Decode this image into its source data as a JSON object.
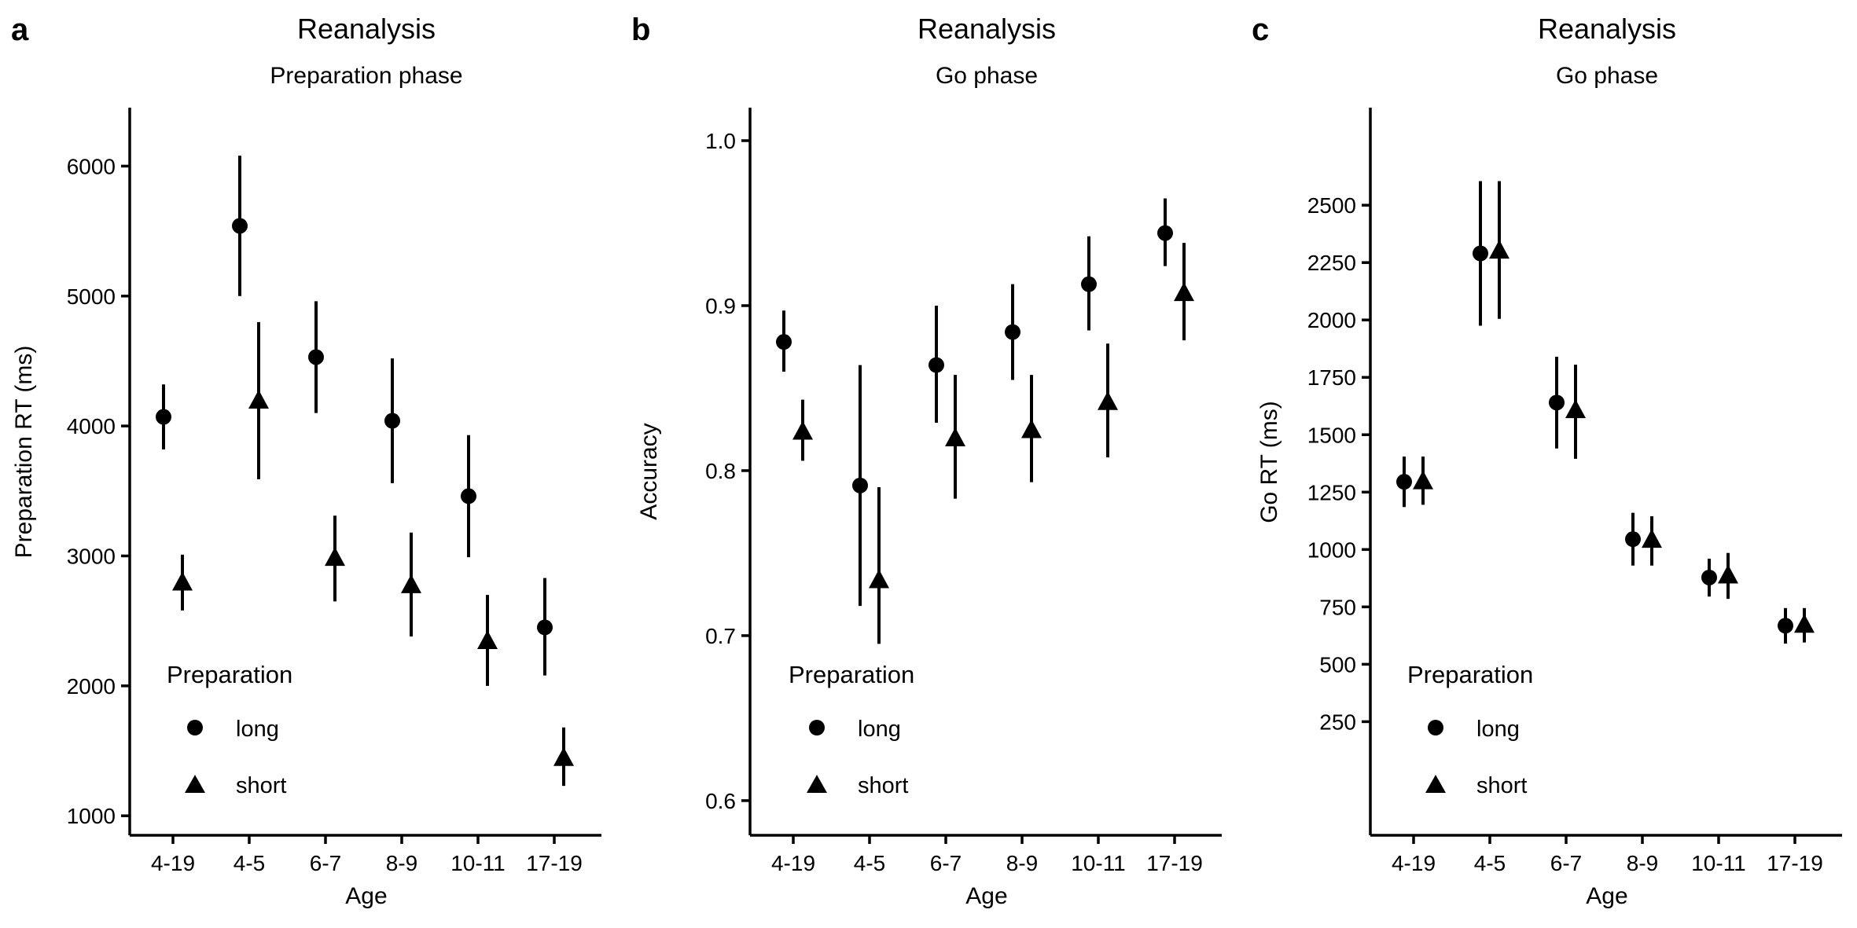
{
  "chart_data": [
    {
      "type": "scatter",
      "panel_letter": "a",
      "title": "Reanalysis",
      "subtitle": "Preparation phase",
      "xlabel": "Age",
      "ylabel": "Preparation RT (ms)",
      "categories": [
        "4-19",
        "4-5",
        "6-7",
        "8-9",
        "10-11",
        "17-19"
      ],
      "ylim": [
        850,
        6450
      ],
      "yticks": [
        1000,
        2000,
        3000,
        4000,
        5000,
        6000
      ],
      "legend": {
        "title": "Preparation",
        "placement": "bottom-left"
      },
      "series": [
        {
          "name": "long",
          "marker": "circle",
          "values": [
            4070,
            5540,
            4530,
            4040,
            3460,
            2450
          ],
          "lower": [
            3820,
            5000,
            4100,
            3560,
            2990,
            2080
          ],
          "upper": [
            4320,
            6080,
            4960,
            4520,
            3930,
            2830
          ]
        },
        {
          "name": "short",
          "marker": "triangle",
          "values": [
            2800,
            4200,
            2990,
            2780,
            2350,
            1450
          ],
          "lower": [
            2580,
            3590,
            2650,
            2380,
            2000,
            1230
          ],
          "upper": [
            3010,
            4800,
            3310,
            3180,
            2700,
            1680
          ]
        }
      ],
      "grid": false
    },
    {
      "type": "scatter",
      "panel_letter": "b",
      "title": "Reanalysis",
      "subtitle": "Go phase",
      "xlabel": "Age",
      "ylabel": "Accuracy",
      "categories": [
        "4-19",
        "4-5",
        "6-7",
        "8-9",
        "10-11",
        "17-19"
      ],
      "ylim": [
        0.579,
        1.02
      ],
      "yticks": [
        0.6,
        0.7,
        0.8,
        0.9,
        1.0
      ],
      "ytick_labels": [
        "0.6",
        "0.7",
        "0.8",
        "0.9",
        "1.0"
      ],
      "legend": {
        "title": "Preparation",
        "placement": "bottom-left"
      },
      "series": [
        {
          "name": "long",
          "marker": "circle",
          "values": [
            0.878,
            0.791,
            0.864,
            0.884,
            0.913,
            0.944
          ],
          "lower": [
            0.86,
            0.718,
            0.829,
            0.855,
            0.885,
            0.924
          ],
          "upper": [
            0.897,
            0.864,
            0.9,
            0.913,
            0.942,
            0.965
          ]
        },
        {
          "name": "short",
          "marker": "triangle",
          "values": [
            0.824,
            0.734,
            0.82,
            0.825,
            0.842,
            0.908
          ],
          "lower": [
            0.806,
            0.695,
            0.783,
            0.793,
            0.808,
            0.879
          ],
          "upper": [
            0.843,
            0.79,
            0.858,
            0.858,
            0.877,
            0.938
          ]
        }
      ],
      "grid": false
    },
    {
      "type": "scatter",
      "panel_letter": "c",
      "title": "Reanalysis",
      "subtitle": "Go phase",
      "xlabel": "Age",
      "ylabel": "Go RT (ms)",
      "categories": [
        "4-19",
        "4-5",
        "6-7",
        "8-9",
        "10-11",
        "17-19"
      ],
      "ylim": [
        -245,
        2925
      ],
      "yticks": [
        250,
        500,
        750,
        1000,
        1250,
        1500,
        1750,
        2000,
        2250,
        2500
      ],
      "legend": {
        "title": "Preparation",
        "placement": "bottom-left"
      },
      "series": [
        {
          "name": "long",
          "marker": "circle",
          "values": [
            1295,
            2290,
            1640,
            1045,
            878,
            668
          ],
          "lower": [
            1185,
            1975,
            1440,
            930,
            795,
            590
          ],
          "upper": [
            1405,
            2605,
            1840,
            1160,
            960,
            745
          ]
        },
        {
          "name": "short",
          "marker": "triangle",
          "values": [
            1300,
            2305,
            1610,
            1045,
            890,
            675
          ],
          "lower": [
            1195,
            2005,
            1395,
            930,
            785,
            595
          ],
          "upper": [
            1405,
            2605,
            1805,
            1145,
            985,
            745
          ]
        }
      ],
      "grid": false
    }
  ]
}
